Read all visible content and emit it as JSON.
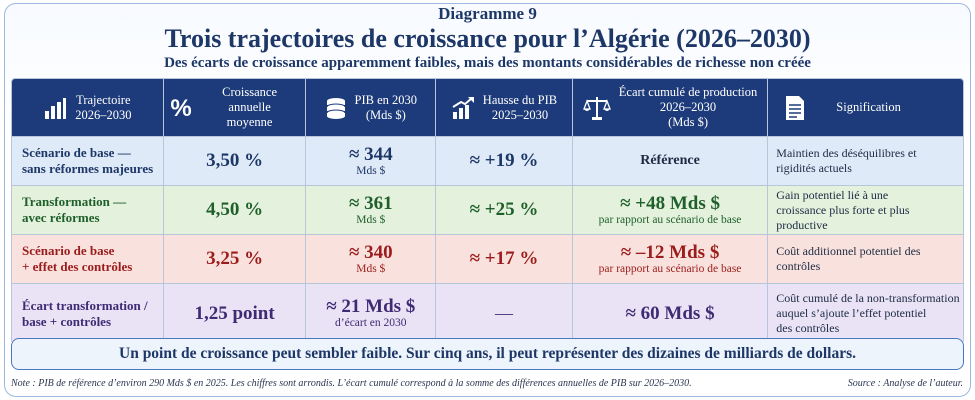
{
  "header": {
    "kicker": "Diagramme 9",
    "title": "Trois trajectoires de croissance pour l’Algérie (2026–2030)",
    "subtitle": "Des écarts de croissance apparemment faibles, mais des montants considérables de richesse non créée"
  },
  "table": {
    "columns": [
      {
        "label": "Trajectoire\n2026–2030",
        "icon": "bar-chart-icon"
      },
      {
        "label": "Croissance annuelle\nmoyenne",
        "icon": "percent-icon"
      },
      {
        "label": "PIB en 2030\n(Mds $)",
        "icon": "coins-icon"
      },
      {
        "label": "Hausse du PIB\n2025–2030",
        "icon": "rising-arrow-icon"
      },
      {
        "label": "Écart cumulé de production\n2026–2030\n(Mds $)",
        "icon": "scale-icon"
      },
      {
        "label": "Signification",
        "icon": "document-icon"
      }
    ],
    "rows": [
      {
        "scenario": "Scénario de base —\nsans réformes majeures",
        "growth": "3,50 %",
        "pib_value": "≈ 344",
        "pib_unit": "Mds $",
        "increase": "≈ +19 %",
        "gap_main": "Référence",
        "gap_sub": "",
        "meaning": "Maintien des déséquilibres et\nrigidités actuels"
      },
      {
        "scenario": "Transformation —\navec réformes",
        "growth": "4,50 %",
        "pib_value": "≈ 361",
        "pib_unit": "Mds $",
        "increase": "≈ +25 %",
        "gap_main": "≈ +48 Mds $",
        "gap_sub": "par rapport au scénario de base",
        "meaning": "Gain potentiel lié à une\ncroissance plus forte et plus productive"
      },
      {
        "scenario": "Scénario de base\n+ effet des contrôles",
        "growth": "3,25 %",
        "pib_value": "≈ 340",
        "pib_unit": "Mds $",
        "increase": "≈ +17 %",
        "gap_main": "≈ –12 Mds $",
        "gap_sub": "par rapport au scénario de base",
        "meaning": "Coût additionnel potentiel des\ncontrôles"
      },
      {
        "scenario": "Écart transformation /\nbase + contrôles",
        "growth": "1,25 point",
        "pib_value": "≈ 21 Mds $",
        "pib_unit": "d’écart en 2030",
        "increase": "—",
        "gap_main": "≈ 60 Mds $",
        "gap_sub": "",
        "meaning": "Coût cumulé de la non-transformation\nauquel s’ajoute l’effet potentiel\ndes contrôles"
      }
    ]
  },
  "callout": "Un point de croissance peut sembler faible. Sur cinq ans, il peut représenter des dizaines de milliards de dollars.",
  "note": "Note : PIB de référence d’environ 290 Mds $ en 2025. Les chiffres sont arrondis. L’écart cumulé correspond à la somme des différences annuelles de PIB sur 2026–2030.",
  "source": "Source : Analyse de l’auteur.",
  "colors": {
    "header_bg": "#1d3b7a",
    "row_blue": "#dfeaf8",
    "row_green": "#e3f1dd",
    "row_red": "#f9e2dd",
    "row_violet": "#e9e3f5",
    "accent": "#4a78bd"
  }
}
